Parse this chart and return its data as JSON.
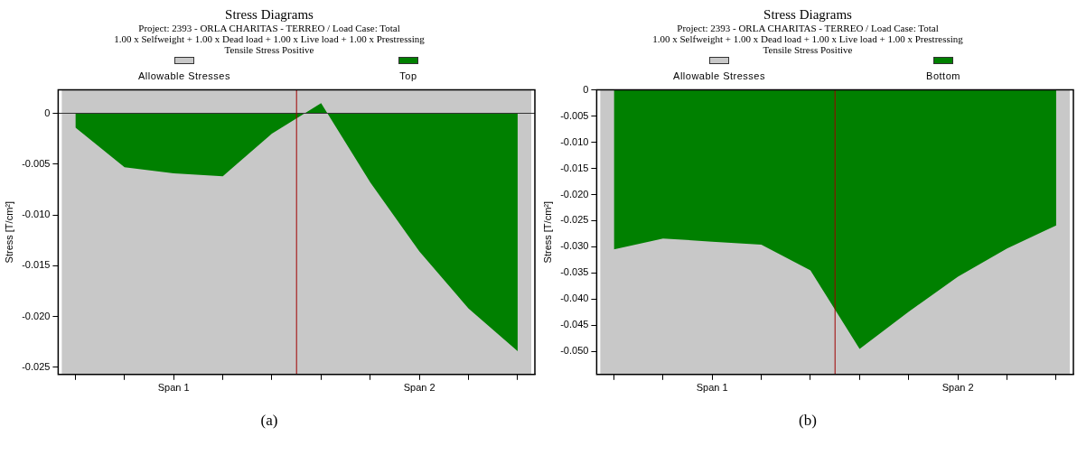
{
  "chart_data": [
    {
      "type": "area",
      "title": "Stress Diagrams",
      "subtitle": "Project: 2393 - ORLA CHARITAS - TERREO / Load Case: Total\n1.00 x Selfweight + 1.00 x Dead load + 1.00 x Live load + 1.00 x Prestressing\nTensile Stress Positive",
      "ylabel": "Stress [T/cm²]",
      "legend": "top",
      "grid": false,
      "categories": [
        null,
        null,
        "Span 1",
        null,
        null,
        null,
        null,
        "Span 2",
        null,
        null
      ],
      "ylim": [
        -0.0257,
        0.0023
      ],
      "yticks": [
        0,
        {
          "value": -0.005,
          "label": "-0.005"
        },
        {
          "value": -0.01,
          "label": "-0.010"
        },
        {
          "value": -0.015,
          "label": "-0.015"
        },
        {
          "value": -0.02,
          "label": "-0.020"
        },
        {
          "value": -0.025,
          "label": "-0.025"
        }
      ],
      "series": [
        {
          "name": "Top",
          "color": "#008000",
          "values": [
            -0.0014,
            -0.0053,
            -0.0059,
            -0.0062,
            -0.002,
            0.001,
            -0.0068,
            -0.0136,
            -0.0192,
            -0.0234
          ]
        }
      ],
      "bands": [
        {
          "axis": "y",
          "from": -0.0257,
          "to": 0.0023,
          "label": "Allowable Stresses",
          "color": "#c8c8c8"
        }
      ],
      "ref_lines": [
        {
          "axis": "y",
          "value": 0,
          "color": "#333333"
        }
      ],
      "annotations": [
        "(a)"
      ]
    },
    {
      "type": "area",
      "title": "Stress Diagrams",
      "subtitle": "Project: 2393 - ORLA CHARITAS - TERREO / Load Case: Total\n1.00 x Selfweight + 1.00 x Dead load + 1.00 x Live load + 1.00 x Prestressing\nTensile Stress Positive",
      "ylabel": "Stress [T/cm²]",
      "legend": "top",
      "grid": false,
      "categories": [
        null,
        null,
        "Span 1",
        null,
        null,
        null,
        null,
        "Span 2",
        null,
        null
      ],
      "ylim": [
        -0.0544,
        0
      ],
      "yticks": [
        0,
        {
          "value": -0.005,
          "label": "-0.005"
        },
        {
          "value": -0.01,
          "label": "-0.010"
        },
        {
          "value": -0.015,
          "label": "-0.015"
        },
        {
          "value": -0.02,
          "label": "-0.020"
        },
        {
          "value": -0.025,
          "label": "-0.025"
        },
        {
          "value": -0.03,
          "label": "-0.030"
        },
        {
          "value": -0.035,
          "label": "-0.035"
        },
        {
          "value": -0.04,
          "label": "-0.040"
        },
        {
          "value": -0.045,
          "label": "-0.045"
        },
        {
          "value": -0.05,
          "label": "-0.050"
        }
      ],
      "series": [
        {
          "name": "Bottom",
          "color": "#008000",
          "values": [
            -0.0305,
            -0.0284,
            -0.029,
            -0.0296,
            -0.0345,
            -0.0495,
            -0.0424,
            -0.0357,
            -0.0303,
            -0.0259
          ]
        }
      ],
      "bands": [
        {
          "axis": "y",
          "from": -0.0544,
          "to": 0,
          "label": "Allowable Stresses",
          "color": "#c8c8c8"
        }
      ],
      "annotations": [
        "(b)"
      ]
    }
  ]
}
